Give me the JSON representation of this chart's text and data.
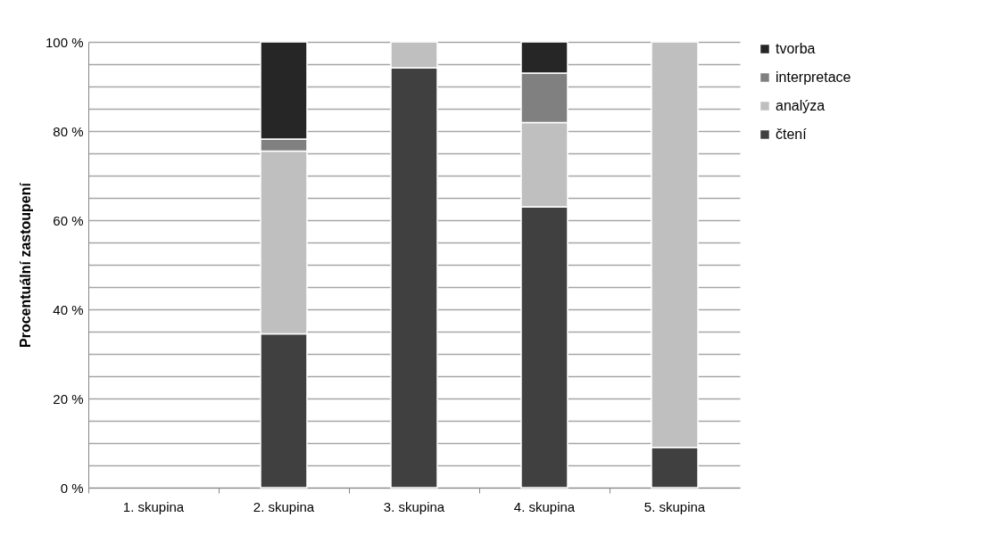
{
  "chart_data": {
    "type": "bar",
    "stacked": true,
    "ylabel": "Procentuální zastoupení",
    "categories": [
      "1. skupina",
      "2. skupina",
      "3. skupina",
      "4. skupina",
      "5. skupina"
    ],
    "series": [
      {
        "name": "čtení",
        "color": "#404040",
        "values": [
          null,
          34.5,
          94.2,
          63,
          9
        ]
      },
      {
        "name": "analýza",
        "color": "#bfbfbf",
        "values": [
          null,
          41,
          5.8,
          18.9,
          91
        ]
      },
      {
        "name": "interpretace",
        "color": "#808080",
        "values": [
          null,
          2.7,
          null,
          11.1,
          null
        ]
      },
      {
        "name": "tvorba",
        "color": "#262626",
        "values": [
          null,
          21.8,
          null,
          7,
          null
        ]
      }
    ],
    "ylim": [
      0,
      100
    ],
    "yticks": [
      {
        "value": 0,
        "label": "0 %"
      },
      {
        "value": 5,
        "label": null
      },
      {
        "value": 10,
        "label": null
      },
      {
        "value": 15,
        "label": null
      },
      {
        "value": 20,
        "label": "20 %"
      },
      {
        "value": 25,
        "label": null
      },
      {
        "value": 30,
        "label": null
      },
      {
        "value": 35,
        "label": null
      },
      {
        "value": 40,
        "label": "40 %"
      },
      {
        "value": 45,
        "label": null
      },
      {
        "value": 50,
        "label": null
      },
      {
        "value": 55,
        "label": null
      },
      {
        "value": 60,
        "label": "60 %"
      },
      {
        "value": 65,
        "label": null
      },
      {
        "value": 70,
        "label": null
      },
      {
        "value": 75,
        "label": null
      },
      {
        "value": 80,
        "label": "80 %"
      },
      {
        "value": 85,
        "label": null
      },
      {
        "value": 90,
        "label": null
      },
      {
        "value": 95,
        "label": null
      },
      {
        "value": 100,
        "label": "100 %"
      }
    ],
    "grid": "y",
    "legend": "right"
  }
}
